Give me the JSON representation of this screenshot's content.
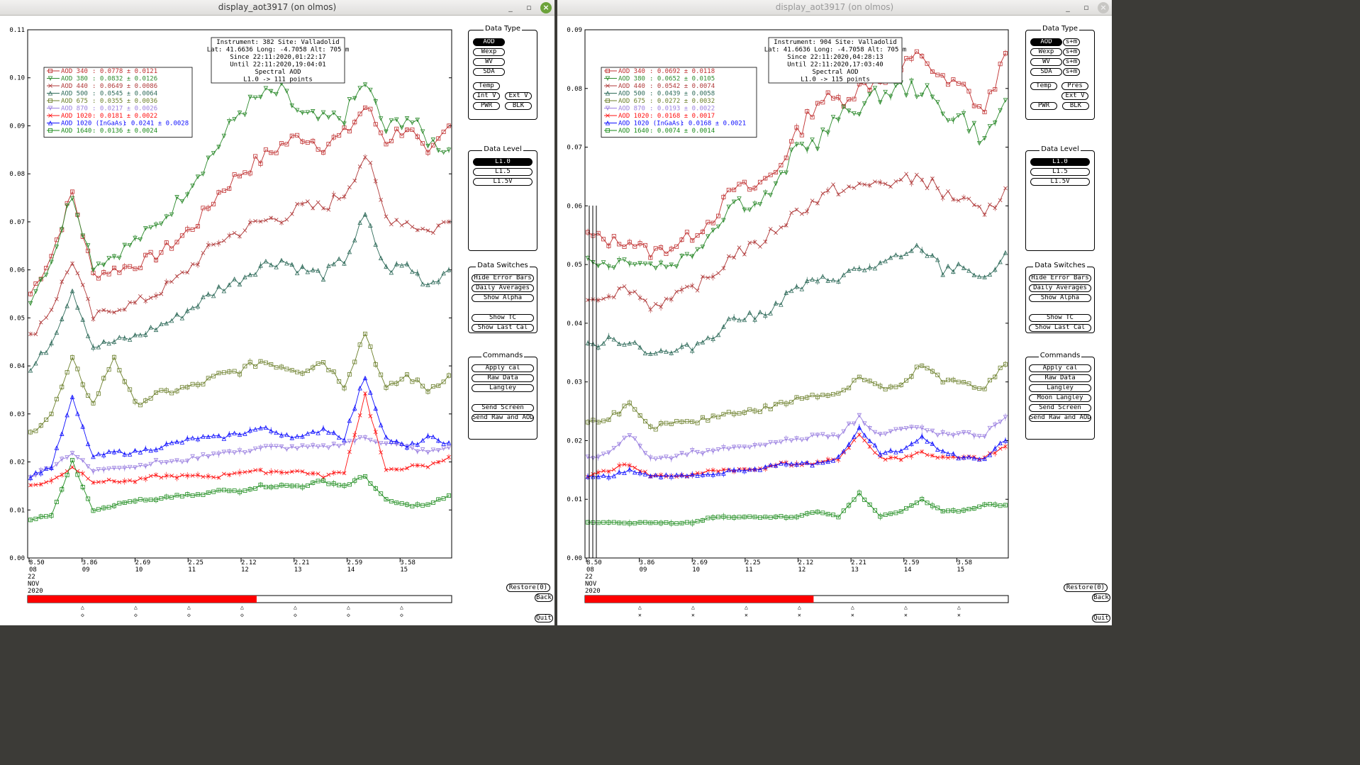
{
  "windows": [
    {
      "title": "display_aot3917 (on olmos)",
      "active": true,
      "info": [
        "Instrument: 382 Site: Valladolid",
        "Lat: 41.6636 Long: -4.7058 Alt: 705 m",
        "Since 22:11:2020,01:22:17",
        "Until 22:11:2020,19:04:01",
        "Spectral AOD",
        "L1.0 -> 111 points"
      ],
      "legend": [
        {
          "label": "AOD 340",
          "value": ": 0.0778 ± 0.0121",
          "color": "#c03030"
        },
        {
          "label": "AOD 380",
          "value": ": 0.0832 ± 0.0126",
          "color": "#2e8b2e"
        },
        {
          "label": "AOD 440",
          "value": ": 0.0649 ± 0.0086",
          "color": "#b03a3a"
        },
        {
          "label": "AOD 500",
          "value": ": 0.0545 ± 0.0064",
          "color": "#2f6b5a"
        },
        {
          "label": "AOD 675",
          "value": ": 0.0355 ± 0.0036",
          "color": "#6b7f2a"
        },
        {
          "label": "AOD 870",
          "value": ": 0.0217 ± 0.0026",
          "color": "#9a7fe0"
        },
        {
          "label": "AOD 1020",
          "value": ": 0.0181 ± 0.0022",
          "color": "#ff1010"
        },
        {
          "label": "AOD 1020 (InGaAs)",
          "value": ": 0.0241 ± 0.0028",
          "color": "#1010ff"
        },
        {
          "label": "AOD 1640",
          "value": ": 0.0136 ± 0.0024",
          "color": "#1a8a1a"
        }
      ],
      "yticks": [
        "0.00",
        "0.01",
        "0.02",
        "0.03",
        "0.04",
        "0.05",
        "0.06",
        "0.07",
        "0.08",
        "0.09",
        "0.10",
        "0.11"
      ],
      "xticks": [
        {
          "top": "8.50",
          "bot": "08"
        },
        {
          "top": "3.86",
          "bot": "09"
        },
        {
          "top": "2.69",
          "bot": "10"
        },
        {
          "top": "2.25",
          "bot": "11"
        },
        {
          "top": "2.12",
          "bot": "12"
        },
        {
          "top": "2.21",
          "bot": "13"
        },
        {
          "top": "2.59",
          "bot": "14"
        },
        {
          "top": "3.58",
          "bot": "15"
        }
      ],
      "date": [
        "22",
        "NOV",
        "2020"
      ],
      "buttons": {
        "data_type": {
          "title": "Data Type",
          "items": [
            "AOD",
            "Wexp",
            "WV",
            "SDA"
          ],
          "extra": [
            "Temp",
            "Int V",
            "Ext V",
            "PWR",
            "BLK"
          ]
        },
        "data_level": {
          "title": "Data Level",
          "items": [
            "L1.0",
            "L1.5",
            "L1.5V"
          ]
        },
        "switches": {
          "title": "Data Switches",
          "items": [
            "Hide Error Bars",
            "Daily Averages",
            "Show Alpha",
            "Show TC",
            "Show Last Cal"
          ]
        },
        "commands": {
          "title": "Commands",
          "items": [
            "Apply cal",
            "Raw Data",
            "Langley",
            "Send Screen",
            "Send Raw and AOD"
          ]
        }
      },
      "restore": "Restore(0)",
      "back": "Back",
      "quit": "Quit"
    },
    {
      "title": "display_aot3917 (on olmos)",
      "active": false,
      "info": [
        "Instrument: 904 Site: Valladolid",
        "Lat: 41.6636 Long: -4.7058 Alt: 705 m",
        "Since 22:11:2020,04:28:13",
        "Until 22:11:2020,17:03:40",
        "Spectral AOD",
        "L1.0 -> 115 points"
      ],
      "legend": [
        {
          "label": "AOD 340",
          "value": ": 0.0692 ± 0.0118",
          "color": "#c03030"
        },
        {
          "label": "AOD 380",
          "value": ": 0.0652 ± 0.0105",
          "color": "#2e8b2e"
        },
        {
          "label": "AOD 440",
          "value": ": 0.0542 ± 0.0074",
          "color": "#b03a3a"
        },
        {
          "label": "AOD 500",
          "value": ": 0.0439 ± 0.0058",
          "color": "#2f6b5a"
        },
        {
          "label": "AOD 675",
          "value": ": 0.0272 ± 0.0032",
          "color": "#6b7f2a"
        },
        {
          "label": "AOD 870",
          "value": ": 0.0193 ± 0.0022",
          "color": "#9a7fe0"
        },
        {
          "label": "AOD 1020",
          "value": ": 0.0168 ± 0.0017",
          "color": "#ff1010"
        },
        {
          "label": "AOD 1020 (InGaAs)",
          "value": ": 0.0168 ± 0.0021",
          "color": "#1010ff"
        },
        {
          "label": "AOD 1640",
          "value": ": 0.0074 ± 0.0014",
          "color": "#1a8a1a"
        }
      ],
      "yticks": [
        "0.00",
        "0.01",
        "0.02",
        "0.03",
        "0.04",
        "0.05",
        "0.06",
        "0.07",
        "0.08",
        "0.09"
      ],
      "xticks": [
        {
          "top": "8.50",
          "bot": "08"
        },
        {
          "top": "3.86",
          "bot": "09"
        },
        {
          "top": "2.69",
          "bot": "10"
        },
        {
          "top": "2.25",
          "bot": "11"
        },
        {
          "top": "2.12",
          "bot": "12"
        },
        {
          "top": "2.21",
          "bot": "13"
        },
        {
          "top": "2.59",
          "bot": "14"
        },
        {
          "top": "3.58",
          "bot": "15"
        }
      ],
      "date": [
        "22",
        "NOV",
        "2020"
      ],
      "buttons": {
        "data_type": {
          "title": "Data Type",
          "items": [
            "AOD",
            "Wexp",
            "WV",
            "SDA"
          ],
          "sm": "s+m",
          "extra": [
            "Temp",
            "Pres",
            "Ext V",
            "PWR",
            "BLK"
          ]
        },
        "data_level": {
          "title": "Data Level",
          "items": [
            "L1.0",
            "L1.5",
            "L1.5V"
          ]
        },
        "switches": {
          "title": "Data Switches",
          "items": [
            "Hide Error Bars",
            "Daily Averages",
            "Show Alpha",
            "Show TC",
            "Show Last Cal"
          ]
        },
        "commands": {
          "title": "Commands",
          "items": [
            "Apply cal",
            "Raw Data",
            "Langley",
            "Moon Langley",
            "Send Screen",
            "Send Raw and AOD"
          ]
        }
      },
      "restore": "Restore(0)",
      "back": "Back",
      "quit": "Quit"
    }
  ],
  "chart_data": [
    {
      "type": "line",
      "x": [
        0,
        1,
        2,
        3,
        4,
        5,
        6,
        7,
        8,
        9,
        10,
        11,
        12,
        13,
        14,
        15,
        16,
        17,
        18,
        19,
        20
      ],
      "ylim": [
        0,
        0.11
      ],
      "series": [
        {
          "name": "AOD 340",
          "values": [
            0.055,
            0.063,
            0.076,
            0.059,
            0.06,
            0.061,
            0.063,
            0.066,
            0.07,
            0.076,
            0.08,
            0.083,
            0.086,
            0.088,
            0.086,
            0.088,
            0.094,
            0.087,
            0.09,
            0.083,
            0.09
          ]
        },
        {
          "name": "AOD 380",
          "values": [
            0.054,
            0.062,
            0.076,
            0.061,
            0.063,
            0.066,
            0.069,
            0.074,
            0.08,
            0.086,
            0.093,
            0.096,
            0.097,
            0.092,
            0.091,
            0.092,
            0.099,
            0.089,
            0.092,
            0.087,
            0.085
          ]
        },
        {
          "name": "AOD 440",
          "values": [
            0.046,
            0.052,
            0.062,
            0.05,
            0.052,
            0.053,
            0.055,
            0.058,
            0.062,
            0.066,
            0.068,
            0.07,
            0.071,
            0.073,
            0.073,
            0.076,
            0.084,
            0.071,
            0.07,
            0.068,
            0.07
          ]
        },
        {
          "name": "AOD 500",
          "values": [
            0.039,
            0.045,
            0.056,
            0.044,
            0.045,
            0.046,
            0.048,
            0.05,
            0.053,
            0.056,
            0.058,
            0.061,
            0.062,
            0.06,
            0.059,
            0.062,
            0.071,
            0.06,
            0.061,
            0.057,
            0.06
          ]
        },
        {
          "name": "AOD 675",
          "values": [
            0.026,
            0.03,
            0.041,
            0.032,
            0.042,
            0.032,
            0.034,
            0.035,
            0.036,
            0.038,
            0.039,
            0.041,
            0.04,
            0.039,
            0.041,
            0.036,
            0.047,
            0.035,
            0.038,
            0.035,
            0.038
          ]
        },
        {
          "name": "AOD 870",
          "values": [
            0.017,
            0.019,
            0.022,
            0.018,
            0.019,
            0.019,
            0.02,
            0.02,
            0.021,
            0.022,
            0.022,
            0.023,
            0.023,
            0.023,
            0.023,
            0.024,
            0.025,
            0.024,
            0.023,
            0.022,
            0.023
          ]
        },
        {
          "name": "AOD 1020",
          "values": [
            0.015,
            0.016,
            0.019,
            0.016,
            0.016,
            0.016,
            0.017,
            0.017,
            0.017,
            0.017,
            0.018,
            0.018,
            0.018,
            0.018,
            0.017,
            0.018,
            0.034,
            0.018,
            0.019,
            0.019,
            0.021
          ]
        },
        {
          "name": "AOD 1020 (InGaAs)",
          "values": [
            0.017,
            0.019,
            0.033,
            0.021,
            0.022,
            0.022,
            0.023,
            0.024,
            0.025,
            0.025,
            0.026,
            0.027,
            0.026,
            0.025,
            0.027,
            0.025,
            0.038,
            0.025,
            0.023,
            0.025,
            0.024
          ]
        },
        {
          "name": "AOD 1640",
          "values": [
            0.008,
            0.009,
            0.02,
            0.01,
            0.011,
            0.012,
            0.012,
            0.013,
            0.013,
            0.014,
            0.014,
            0.015,
            0.015,
            0.015,
            0.016,
            0.015,
            0.017,
            0.012,
            0.011,
            0.011,
            0.013
          ]
        }
      ]
    },
    {
      "type": "line",
      "x": [
        0,
        1,
        2,
        3,
        4,
        5,
        6,
        7,
        8,
        9,
        10,
        11,
        12,
        13,
        14,
        15,
        16,
        17,
        18,
        19,
        20
      ],
      "ylim": [
        0,
        0.09
      ],
      "series": [
        {
          "name": "AOD 340",
          "values": [
            0.055,
            0.054,
            0.054,
            0.052,
            0.053,
            0.055,
            0.058,
            0.063,
            0.063,
            0.066,
            0.072,
            0.078,
            0.078,
            0.08,
            0.082,
            0.083,
            0.086,
            0.081,
            0.08,
            0.076,
            0.086
          ]
        },
        {
          "name": "AOD 380",
          "values": [
            0.051,
            0.05,
            0.051,
            0.05,
            0.05,
            0.052,
            0.056,
            0.061,
            0.06,
            0.063,
            0.07,
            0.071,
            0.075,
            0.077,
            0.079,
            0.08,
            0.08,
            0.076,
            0.075,
            0.071,
            0.078
          ]
        },
        {
          "name": "AOD 440",
          "values": [
            0.044,
            0.045,
            0.046,
            0.043,
            0.044,
            0.046,
            0.048,
            0.052,
            0.053,
            0.056,
            0.059,
            0.061,
            0.063,
            0.063,
            0.064,
            0.064,
            0.065,
            0.062,
            0.061,
            0.058,
            0.063
          ]
        },
        {
          "name": "AOD 500",
          "values": [
            0.036,
            0.037,
            0.037,
            0.035,
            0.035,
            0.036,
            0.038,
            0.041,
            0.041,
            0.043,
            0.046,
            0.047,
            0.048,
            0.049,
            0.05,
            0.051,
            0.053,
            0.049,
            0.05,
            0.047,
            0.052
          ]
        },
        {
          "name": "AOD 675",
          "values": [
            0.023,
            0.024,
            0.026,
            0.022,
            0.023,
            0.023,
            0.024,
            0.025,
            0.025,
            0.026,
            0.027,
            0.028,
            0.028,
            0.031,
            0.029,
            0.029,
            0.033,
            0.03,
            0.03,
            0.029,
            0.033
          ]
        },
        {
          "name": "AOD 870",
          "values": [
            0.017,
            0.018,
            0.021,
            0.017,
            0.017,
            0.018,
            0.018,
            0.019,
            0.019,
            0.02,
            0.02,
            0.021,
            0.021,
            0.024,
            0.021,
            0.022,
            0.022,
            0.021,
            0.021,
            0.021,
            0.024
          ]
        },
        {
          "name": "AOD 1020",
          "values": [
            0.014,
            0.015,
            0.016,
            0.014,
            0.014,
            0.014,
            0.015,
            0.015,
            0.015,
            0.016,
            0.016,
            0.016,
            0.017,
            0.021,
            0.017,
            0.017,
            0.018,
            0.017,
            0.017,
            0.017,
            0.019
          ]
        },
        {
          "name": "AOD 1020 (InGaAs)",
          "values": [
            0.014,
            0.014,
            0.015,
            0.014,
            0.014,
            0.014,
            0.014,
            0.015,
            0.015,
            0.016,
            0.016,
            0.016,
            0.017,
            0.022,
            0.018,
            0.018,
            0.021,
            0.018,
            0.017,
            0.017,
            0.02
          ]
        },
        {
          "name": "AOD 1640",
          "values": [
            0.006,
            0.006,
            0.006,
            0.006,
            0.006,
            0.006,
            0.007,
            0.007,
            0.007,
            0.007,
            0.007,
            0.008,
            0.007,
            0.011,
            0.007,
            0.008,
            0.01,
            0.008,
            0.008,
            0.009,
            0.009
          ]
        }
      ]
    }
  ]
}
